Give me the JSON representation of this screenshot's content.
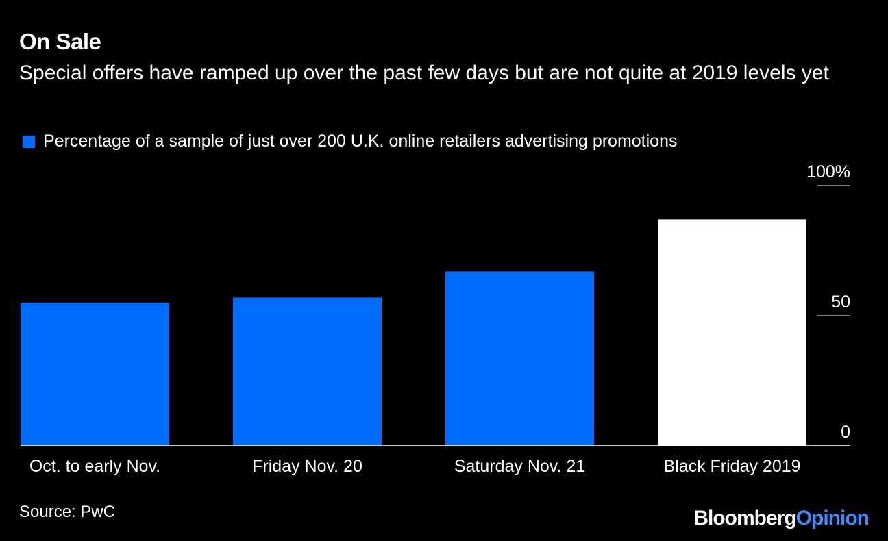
{
  "header": {
    "title": "On Sale",
    "subtitle": "Special offers have ramped up over the past few days but are not quite at 2019 levels yet"
  },
  "legend": {
    "label": "Percentage of a sample of just over 200 U.K. online retailers advertising promotions"
  },
  "footer": {
    "source": "Source: PwC",
    "brand_primary": "Bloomberg",
    "brand_secondary": "Opinion"
  },
  "colors": {
    "background": "#000000",
    "series": "#006dff",
    "highlight": "#ffffff",
    "text": "#ffffff",
    "brand_accent": "#3d8cff"
  },
  "chart_data": {
    "type": "bar",
    "title": "On Sale",
    "subtitle": "Special offers have ramped up over the past few days but are not quite at 2019 levels yet",
    "categories": [
      "Oct. to early Nov.",
      "Friday Nov. 20",
      "Saturday Nov. 21",
      "Black Friday 2019"
    ],
    "values": [
      55,
      57,
      67,
      87
    ],
    "highlight_index": 3,
    "series": [
      {
        "name": "Percentage of a sample of just over 200 U.K. online retailers advertising promotions",
        "values": [
          55,
          57,
          67,
          87
        ]
      }
    ],
    "xlabel": "",
    "ylabel": "",
    "ylim": [
      0,
      100
    ],
    "y_ticks": [
      {
        "value": 0,
        "label": "0"
      },
      {
        "value": 50,
        "label": "50"
      },
      {
        "value": 100,
        "label": "100%"
      }
    ],
    "y_axis_side": "right",
    "grid": false,
    "legend_position": "top-left"
  }
}
